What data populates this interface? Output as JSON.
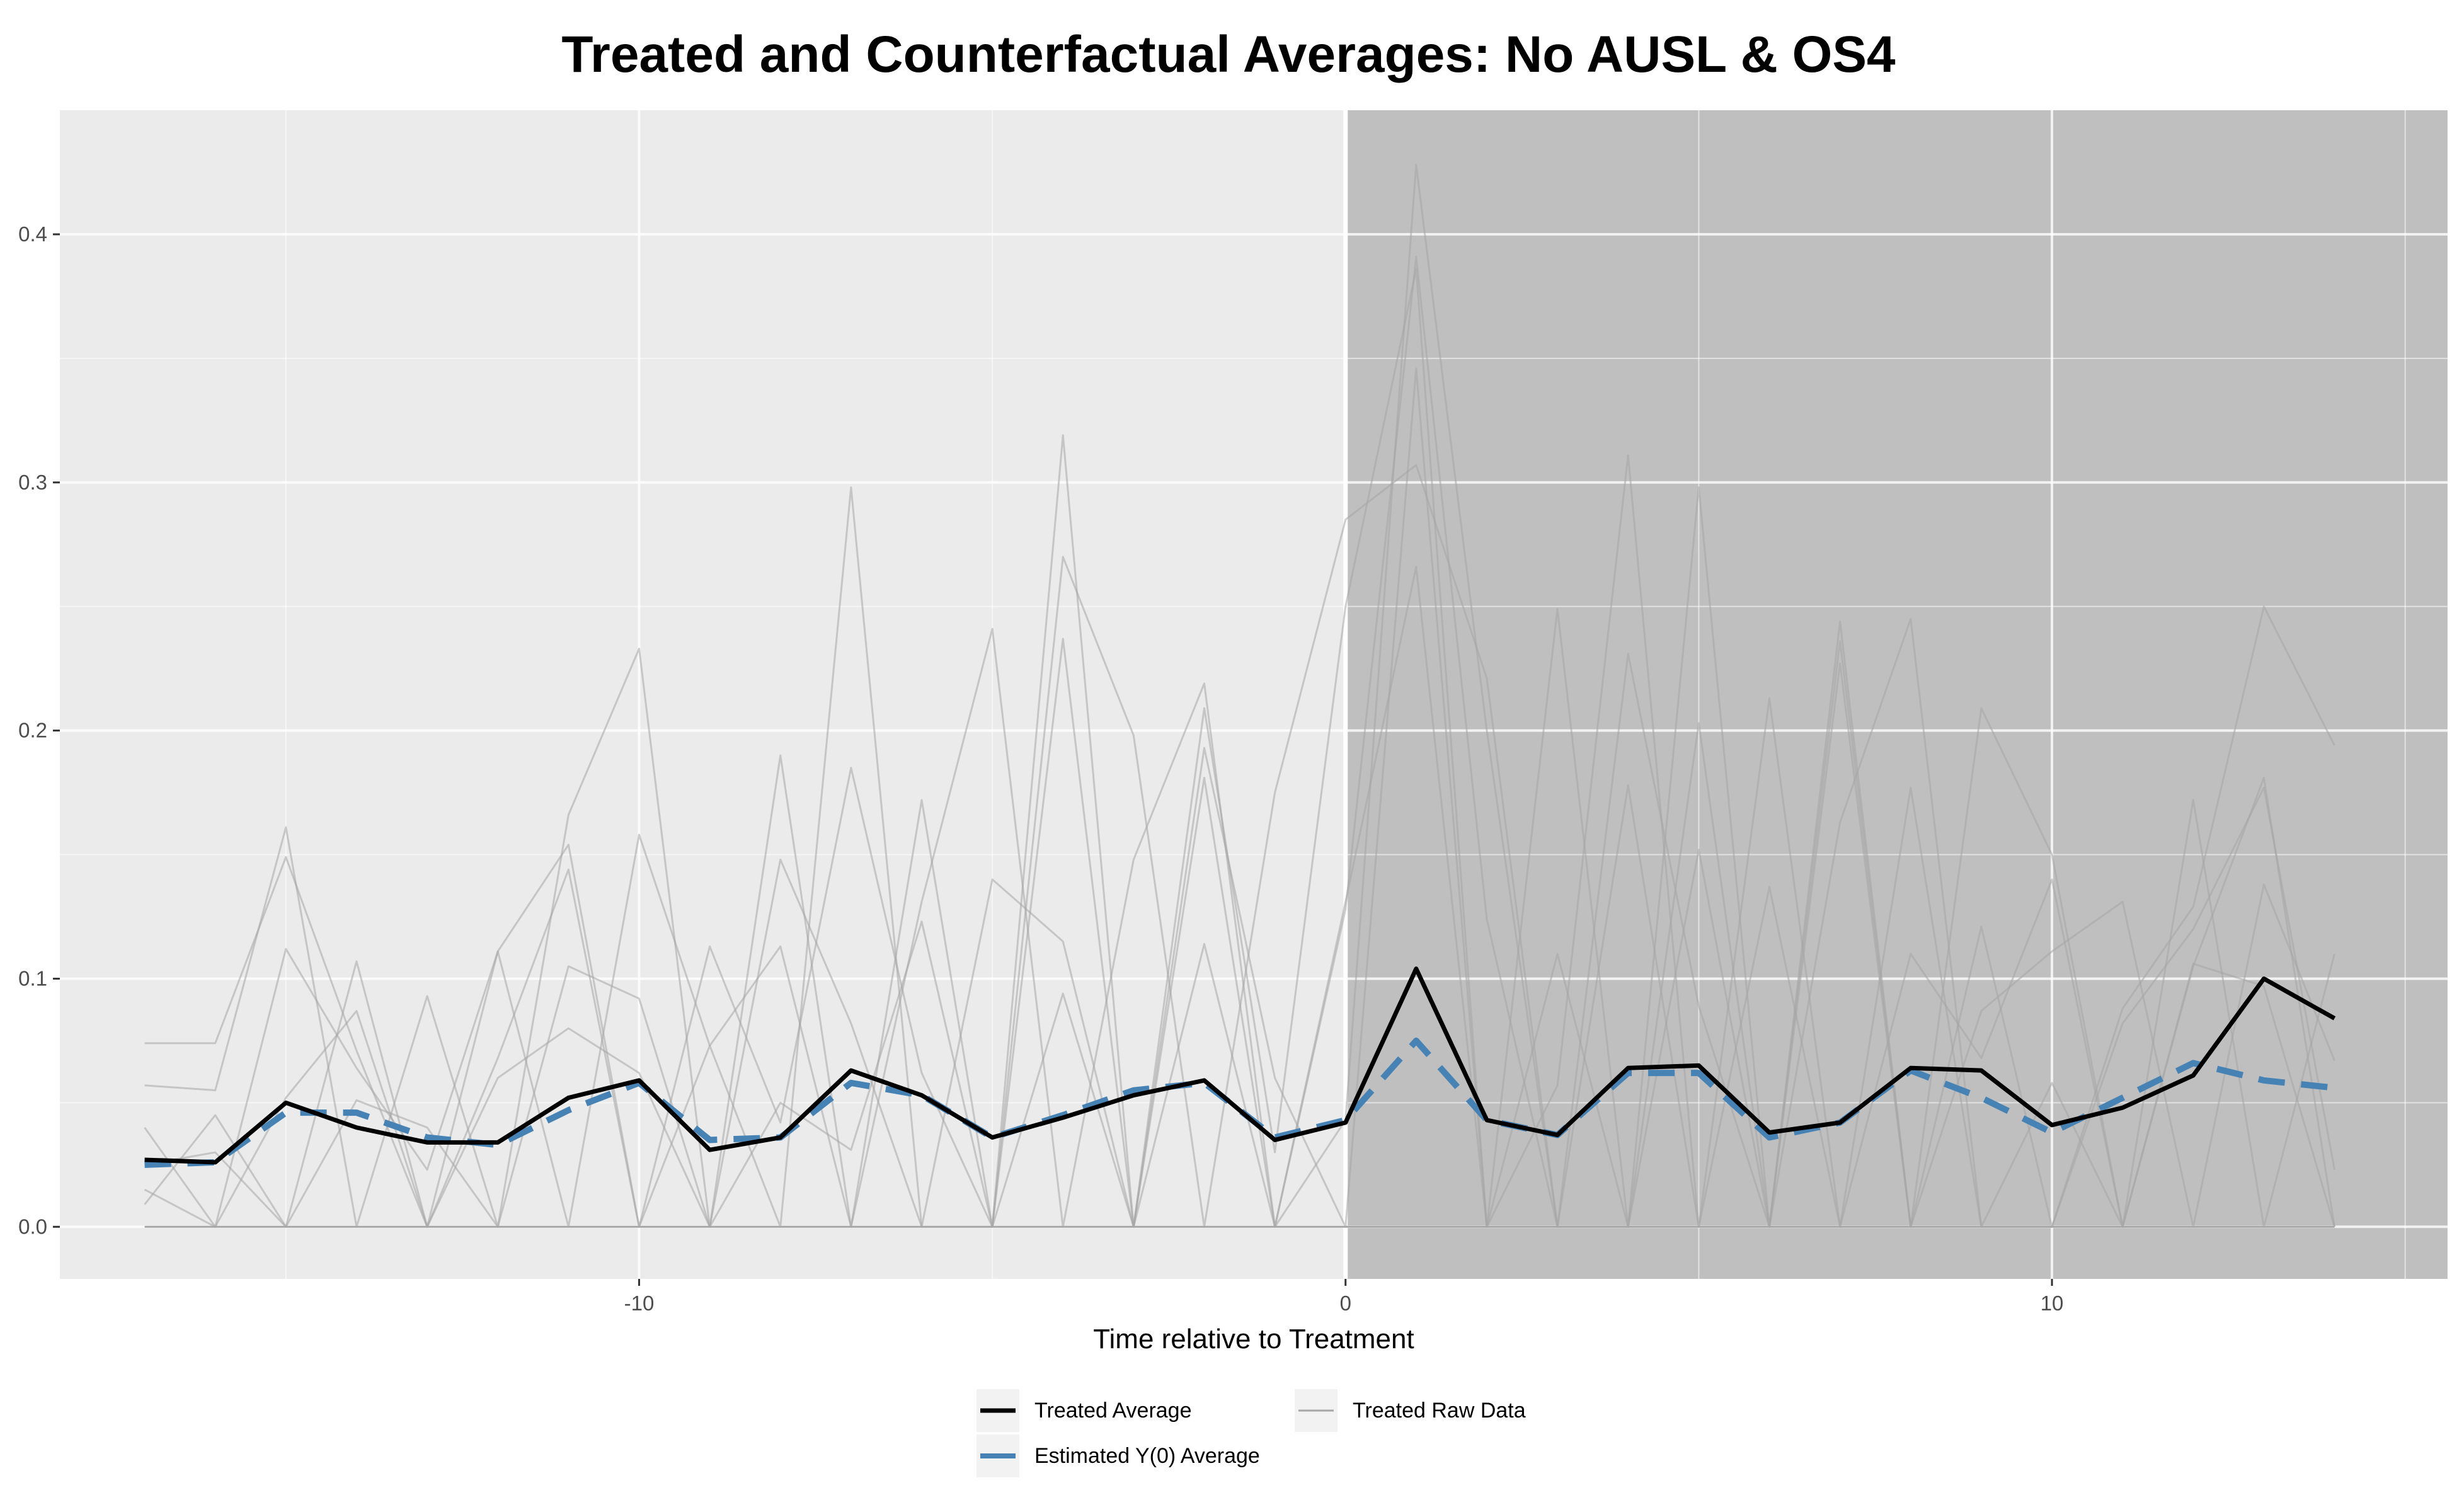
{
  "chart_data": {
    "type": "line",
    "title": "Treated and Counterfactual Averages: No AUSL & OS4",
    "xlabel": "Time relative to Treatment",
    "ylabel": "",
    "xlim": [
      -18.2,
      15.6
    ],
    "ylim": [
      -0.021,
      0.45
    ],
    "x_ticks": [
      -10,
      0,
      10
    ],
    "x_tick_labels": [
      "-10",
      "0",
      "10"
    ],
    "y_ticks": [
      0.0,
      0.1,
      0.2,
      0.3,
      0.4
    ],
    "y_tick_labels": [
      "0.0",
      "0.1",
      "0.2",
      "0.3",
      "0.4"
    ],
    "treatment_time": 0,
    "post_treatment_shaded": true,
    "grid": true,
    "legend_position": "bottom",
    "colors": {
      "panel_background": "#ebebeb",
      "post_treatment_shade": "#bfbfbf",
      "gridline": "#ffffff",
      "treated_average": "#000000",
      "estimated_y0": "#4682b4",
      "raw_data": "#a6a6a6"
    },
    "x": [
      -17,
      -16,
      -15,
      -14,
      -13,
      -12,
      -11,
      -10,
      -9,
      -8,
      -7,
      -6,
      -5,
      -4,
      -3,
      -2,
      -1,
      0,
      1,
      2,
      3,
      4,
      5,
      6,
      7,
      8,
      9,
      10,
      11,
      12,
      13,
      14
    ],
    "series": [
      {
        "name": "Treated Average",
        "style": "solid",
        "values": [
          0.027,
          0.026,
          0.05,
          0.04,
          0.034,
          0.034,
          0.052,
          0.059,
          0.031,
          0.036,
          0.063,
          0.053,
          0.036,
          0.044,
          0.053,
          0.059,
          0.035,
          0.042,
          0.104,
          0.043,
          0.037,
          0.064,
          0.065,
          0.038,
          0.042,
          0.064,
          0.063,
          0.041,
          0.048,
          0.061,
          0.1,
          0.084
        ]
      },
      {
        "name": "Estimated Y(0) Average",
        "style": "dashed",
        "values": [
          0.025,
          0.026,
          0.046,
          0.046,
          0.036,
          0.033,
          0.047,
          0.058,
          0.035,
          0.036,
          0.058,
          0.053,
          0.036,
          0.045,
          0.055,
          0.058,
          0.036,
          0.043,
          0.075,
          0.043,
          0.037,
          0.062,
          0.062,
          0.036,
          0.042,
          0.063,
          0.052,
          0.038,
          0.052,
          0.066,
          0.059,
          0.056
        ]
      }
    ],
    "raw_data": {
      "name": "Treated Raw Data",
      "lines": [
        [
          0.025,
          0.03,
          0.0,
          0.107,
          0.0,
          0.06,
          0.08,
          0.062,
          0.0,
          0.05,
          0.031,
          0.123,
          0.0,
          0.094,
          0.0,
          0.209,
          0.03,
          0.25,
          0.386,
          0.0,
          0.057,
          0.311,
          0.0,
          0.213,
          0.0,
          0.11,
          0.068,
          0.14,
          0.0,
          0.105,
          0.181,
          0.0
        ],
        [
          0.074,
          0.074,
          0.149,
          0.071,
          0.0,
          0.111,
          0.154,
          0.0,
          0.073,
          0.0,
          0.298,
          0.0,
          0.0,
          0.319,
          0.0,
          0.114,
          0.0,
          0.043,
          0.428,
          0.2,
          0.0,
          0.231,
          0.089,
          0.0,
          0.244,
          0.0,
          0.121,
          0.0,
          0.088,
          0.129,
          0.25,
          0.194
        ],
        [
          0.057,
          0.055,
          0.161,
          0.0,
          0.093,
          0.0,
          0.166,
          0.233,
          0.0,
          0.19,
          0.0,
          0.172,
          0.0,
          0.27,
          0.198,
          0.0,
          0.175,
          0.285,
          0.307,
          0.221,
          0.0,
          0.0,
          0.298,
          0.0,
          0.236,
          0.0,
          0.209,
          0.15,
          0.0,
          0.172,
          0.0,
          0.11
        ],
        [
          0.015,
          0.0,
          0.112,
          0.064,
          0.023,
          0.111,
          0.0,
          0.158,
          0.073,
          0.113,
          0.0,
          0.131,
          0.241,
          0.0,
          0.148,
          0.219,
          0.0,
          0.131,
          0.266,
          0.0,
          0.249,
          0.0,
          0.203,
          0.0,
          0.163,
          0.245,
          0.0,
          0.0,
          0.082,
          0.12,
          0.177,
          0.023
        ],
        [
          0.04,
          0.0,
          0.052,
          0.087,
          0.0,
          0.068,
          0.144,
          0.0,
          0.113,
          0.042,
          0.185,
          0.062,
          0.0,
          0.237,
          0.0,
          0.193,
          0.06,
          0.0,
          0.346,
          0.0,
          0.11,
          0.0,
          0.152,
          0.0,
          0.227,
          0.0,
          0.087,
          0.111,
          0.131,
          0.0,
          0.138,
          0.067
        ],
        [
          0.009,
          0.045,
          0.0,
          0.051,
          0.04,
          0.0,
          0.105,
          0.092,
          0.0,
          0.148,
          0.082,
          0.0,
          0.14,
          0.115,
          0.0,
          0.181,
          0.0,
          0.128,
          0.391,
          0.124,
          0.0,
          0.178,
          0.0,
          0.137,
          0.0,
          0.177,
          0.0,
          0.058,
          0.0,
          0.106,
          0.097,
          0.0
        ]
      ]
    },
    "legend": [
      {
        "label": "Treated Average",
        "swatch": "solid-black"
      },
      {
        "label": "Treated Raw Data",
        "swatch": "thin-grey"
      },
      {
        "label": "Estimated Y(0) Average",
        "swatch": "dashed-blue"
      }
    ]
  }
}
